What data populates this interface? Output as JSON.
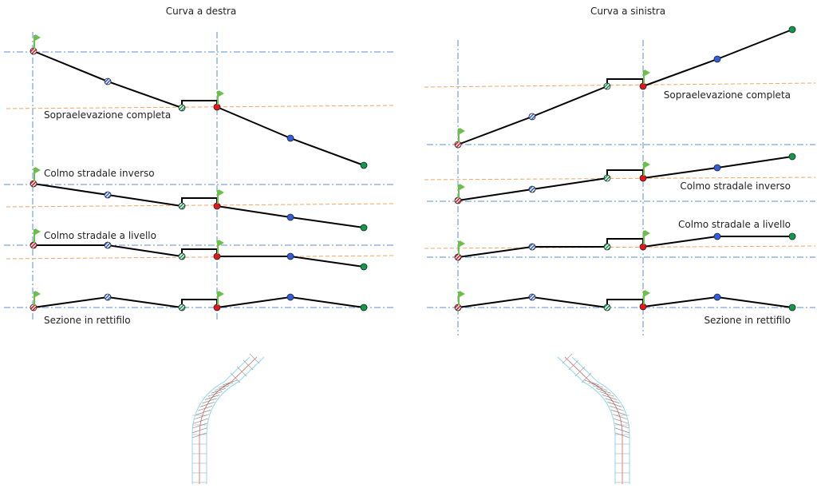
{
  "left": {
    "title": "Curva a destra",
    "labels": [
      "Sopraelevazione completa",
      "Colmo stradale inverso",
      "Colmo stradale a livello",
      "Sezione in rettifilo"
    ]
  },
  "right": {
    "title": "Curva a sinistra",
    "labels": [
      "Sopraelevazione completa",
      "Colmo stradale inverso",
      "Colmo stradale a livello",
      "Sezione in rettifilo"
    ]
  },
  "colors": {
    "axis": "#5b8fd6",
    "superelevation": "#f4a460",
    "profile": "#000000",
    "red": "#e8141b",
    "blue": "#2f5fe0",
    "green": "#0f9a4a",
    "flag": "#6cc04a",
    "road_edge": "#8fd8f0",
    "road_center": "#e06060"
  },
  "icons": [
    "flag-icon",
    "hatched-point-marker",
    "solid-point-marker"
  ]
}
